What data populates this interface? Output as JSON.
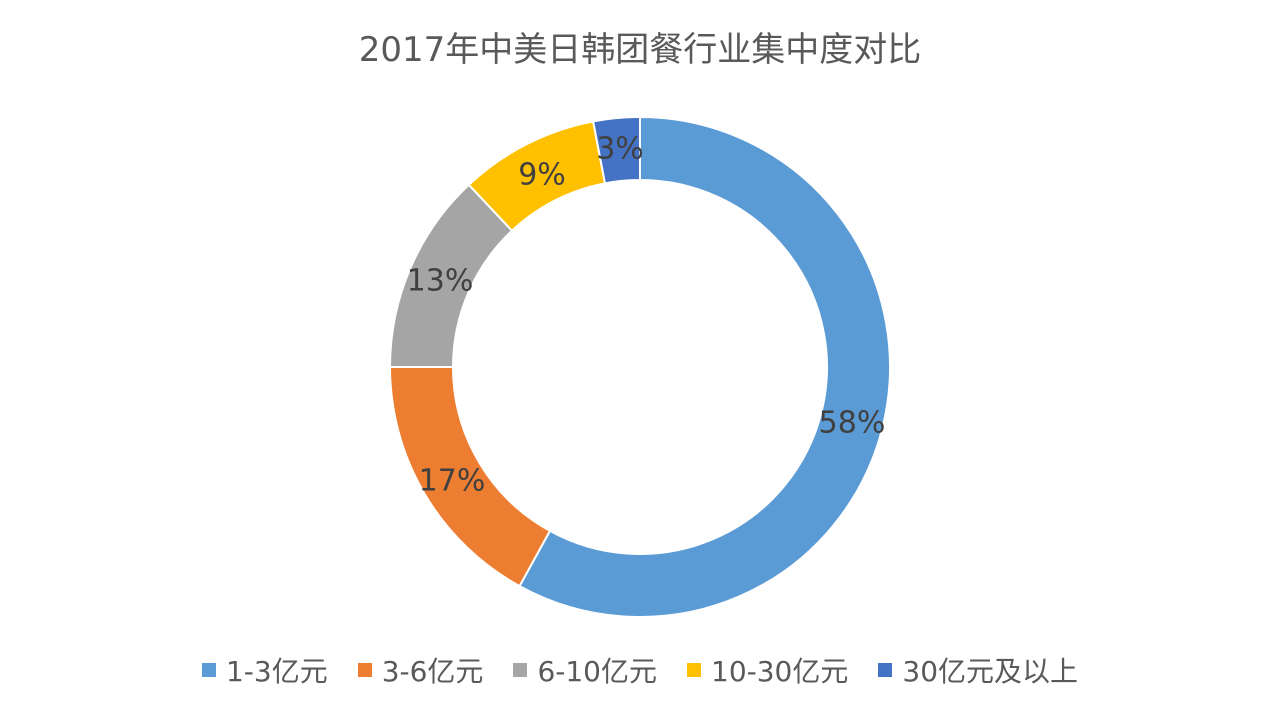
{
  "chart_data": {
    "type": "pie",
    "variant": "donut",
    "title": "2017年中美日韩团餐行业集中度对比",
    "categories": [
      "1-3亿元",
      "3-6亿元",
      "6-10亿元",
      "10-30亿元",
      "30亿元及以上"
    ],
    "values": [
      58,
      17,
      13,
      9,
      3
    ],
    "data_labels": [
      "58%",
      "17%",
      "13%",
      "9%",
      "3%"
    ],
    "colors": [
      "#5B9BD5",
      "#ED7D31",
      "#A5A5A5",
      "#FFC000",
      "#4472C4"
    ],
    "legend_position": "bottom"
  }
}
